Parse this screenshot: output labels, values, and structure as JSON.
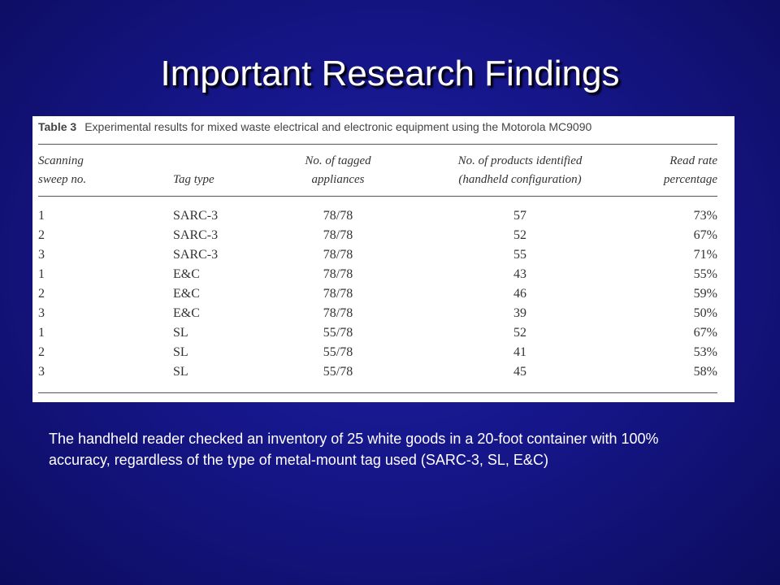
{
  "title": "Important Research Findings",
  "table": {
    "label": "Table 3",
    "caption": "Experimental results for mixed waste electrical and electronic equipment using the Motorola MC9090",
    "headers": [
      [
        "Scanning",
        "sweep no."
      ],
      [
        "Tag type"
      ],
      [
        "No. of tagged",
        "appliances"
      ],
      [
        "No. of products identified",
        "(handheld configuration)"
      ],
      [
        "Read rate",
        "percentage"
      ]
    ],
    "rows": [
      [
        "1",
        "SARC-3",
        "78/78",
        "57",
        "73%"
      ],
      [
        "2",
        "SARC-3",
        "78/78",
        "52",
        "67%"
      ],
      [
        "3",
        "SARC-3",
        "78/78",
        "55",
        "71%"
      ],
      [
        "1",
        "E&C",
        "78/78",
        "43",
        "55%"
      ],
      [
        "2",
        "E&C",
        "78/78",
        "46",
        "59%"
      ],
      [
        "3",
        "E&C",
        "78/78",
        "39",
        "50%"
      ],
      [
        "1",
        "SL",
        "55/78",
        "52",
        "67%"
      ],
      [
        "2",
        "SL",
        "55/78",
        "41",
        "53%"
      ],
      [
        "3",
        "SL",
        "55/78",
        "45",
        "58%"
      ]
    ]
  },
  "body_text": "The handheld reader checked an inventory of 25 white goods in a 20-foot container with 100% accuracy, regardless of the type of metal-mount tag used (SARC-3, SL, E&C)"
}
